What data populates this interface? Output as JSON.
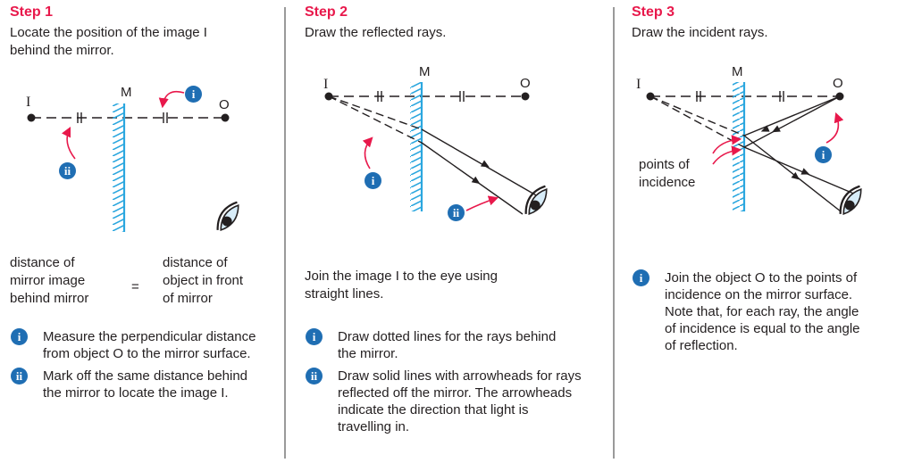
{
  "colors": {
    "accent": "#e8184b",
    "badge": "#1f6eb3",
    "mirror": "#2ba7df",
    "eye": "#d7ecf8",
    "arrow": "#e8184b"
  },
  "step1": {
    "title": "Step 1",
    "subtitle": "Locate the position of the image I\nbehind the mirror.",
    "labels": {
      "I": "I",
      "M": "M",
      "O": "O"
    },
    "badge_i": "i",
    "badge_ii": "ii",
    "formula": {
      "left": "distance of\nmirror image\nbehind mirror",
      "equals": "=",
      "right": "distance of\nobject in front\nof mirror"
    },
    "bullets": [
      {
        "badge": "i",
        "text": "Measure the perpendicular distance\nfrom object O to the mirror surface."
      },
      {
        "badge": "ii",
        "text": "Mark off the same distance behind\nthe mirror to locate the image I."
      }
    ]
  },
  "step2": {
    "title": "Step 2",
    "subtitle": "Draw the reflected rays.",
    "labels": {
      "I": "I",
      "M": "M",
      "O": "O"
    },
    "badge_i": "i",
    "badge_ii": "ii",
    "description": "Join the image I to the eye using\nstraight lines.",
    "bullets": [
      {
        "badge": "i",
        "text": "Draw dotted lines for the rays behind\nthe mirror."
      },
      {
        "badge": "ii",
        "text": "Draw solid lines with arrowheads for rays\nreflected off the mirror. The arrowheads\nindicate the direction that light is\ntravelling in."
      }
    ]
  },
  "step3": {
    "title": "Step 3",
    "subtitle": "Draw the incident rays.",
    "labels": {
      "I": "I",
      "M": "M",
      "O": "O"
    },
    "points_label": "points of\nincidence",
    "badge_i": "i",
    "bullets": [
      {
        "badge": "i",
        "text": "Join the object O to the points of\nincidence on the mirror surface.\nNote that, for each ray, the angle\nof incidence is equal to the angle\nof reflection."
      }
    ]
  }
}
